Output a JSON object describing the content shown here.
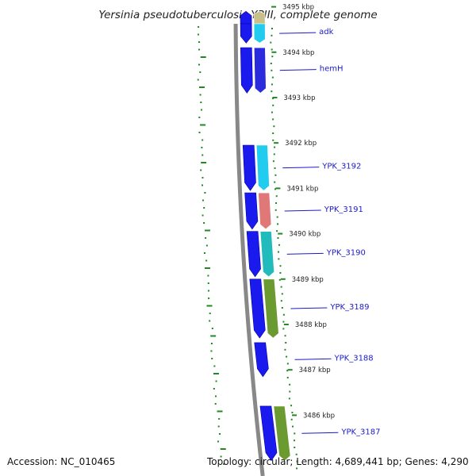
{
  "title": "Yersinia pseudotuberculosis YPIII, complete genome",
  "accession": "Accession: NC_010465",
  "topology": "Topology: circular; Length: 4,689,441 bp; Genes: 4,290",
  "colors": {
    "forward_strand": "#1a1aee",
    "reverse_strand": "#2b2bdd",
    "cog_tan": "#c8c088",
    "cog_cyan": "#22ccee",
    "cog_salmon": "#e07878",
    "cog_olive": "#88a040",
    "cog_green": "#6a9a30",
    "cog_teal": "#22bbbb",
    "gc_dots": "#228822",
    "ruler": "#888888",
    "gene_label": "#1a1acc"
  },
  "scale": {
    "unit": "kbp",
    "ticks": [
      {
        "kbp": 3495,
        "label": "3495 kbp"
      },
      {
        "kbp": 3494,
        "label": "3494 kbp"
      },
      {
        "kbp": 3493,
        "label": "3493 kbp"
      },
      {
        "kbp": 3492,
        "label": "3492 kbp"
      },
      {
        "kbp": 3491,
        "label": "3491 kbp"
      },
      {
        "kbp": 3490,
        "label": "3490 kbp"
      },
      {
        "kbp": 3489,
        "label": "3489 kbp"
      },
      {
        "kbp": 3488,
        "label": "3488 kbp"
      },
      {
        "kbp": 3487,
        "label": "3487 kbp"
      },
      {
        "kbp": 3486,
        "label": "3486 kbp"
      }
    ]
  },
  "genes": [
    {
      "name": "",
      "start": 3494.9,
      "end": 3495.6,
      "strand": "-",
      "cog": "cog_tan"
    },
    {
      "name": "adk",
      "start": 3494.2,
      "end": 3494.85,
      "strand": "-",
      "cog": "cog_cyan"
    },
    {
      "name": "hemH",
      "start": 3493.1,
      "end": 3494.1,
      "strand": "-",
      "cog": "cog_blue"
    },
    {
      "name": "YPK_3192",
      "start": 3490.95,
      "end": 3491.95,
      "strand": "-",
      "cog": "cog_cyan"
    },
    {
      "name": "YPK_3191",
      "start": 3490.1,
      "end": 3490.9,
      "strand": "-",
      "cog": "cog_salmon"
    },
    {
      "name": "YPK_3190",
      "start": 3489.05,
      "end": 3490.05,
      "strand": "-",
      "cog": "cog_teal"
    },
    {
      "name": "YPK_3189",
      "start": 3487.7,
      "end": 3489.0,
      "strand": "-",
      "cog": "cog_green"
    },
    {
      "name": "YPK_3188",
      "start": 3486.85,
      "end": 3487.6,
      "strand": "-",
      "cog": "none"
    },
    {
      "name": "YPK_3187",
      "start": 3485.0,
      "end": 3486.2,
      "strand": "-",
      "cog": "cog_green"
    }
  ]
}
